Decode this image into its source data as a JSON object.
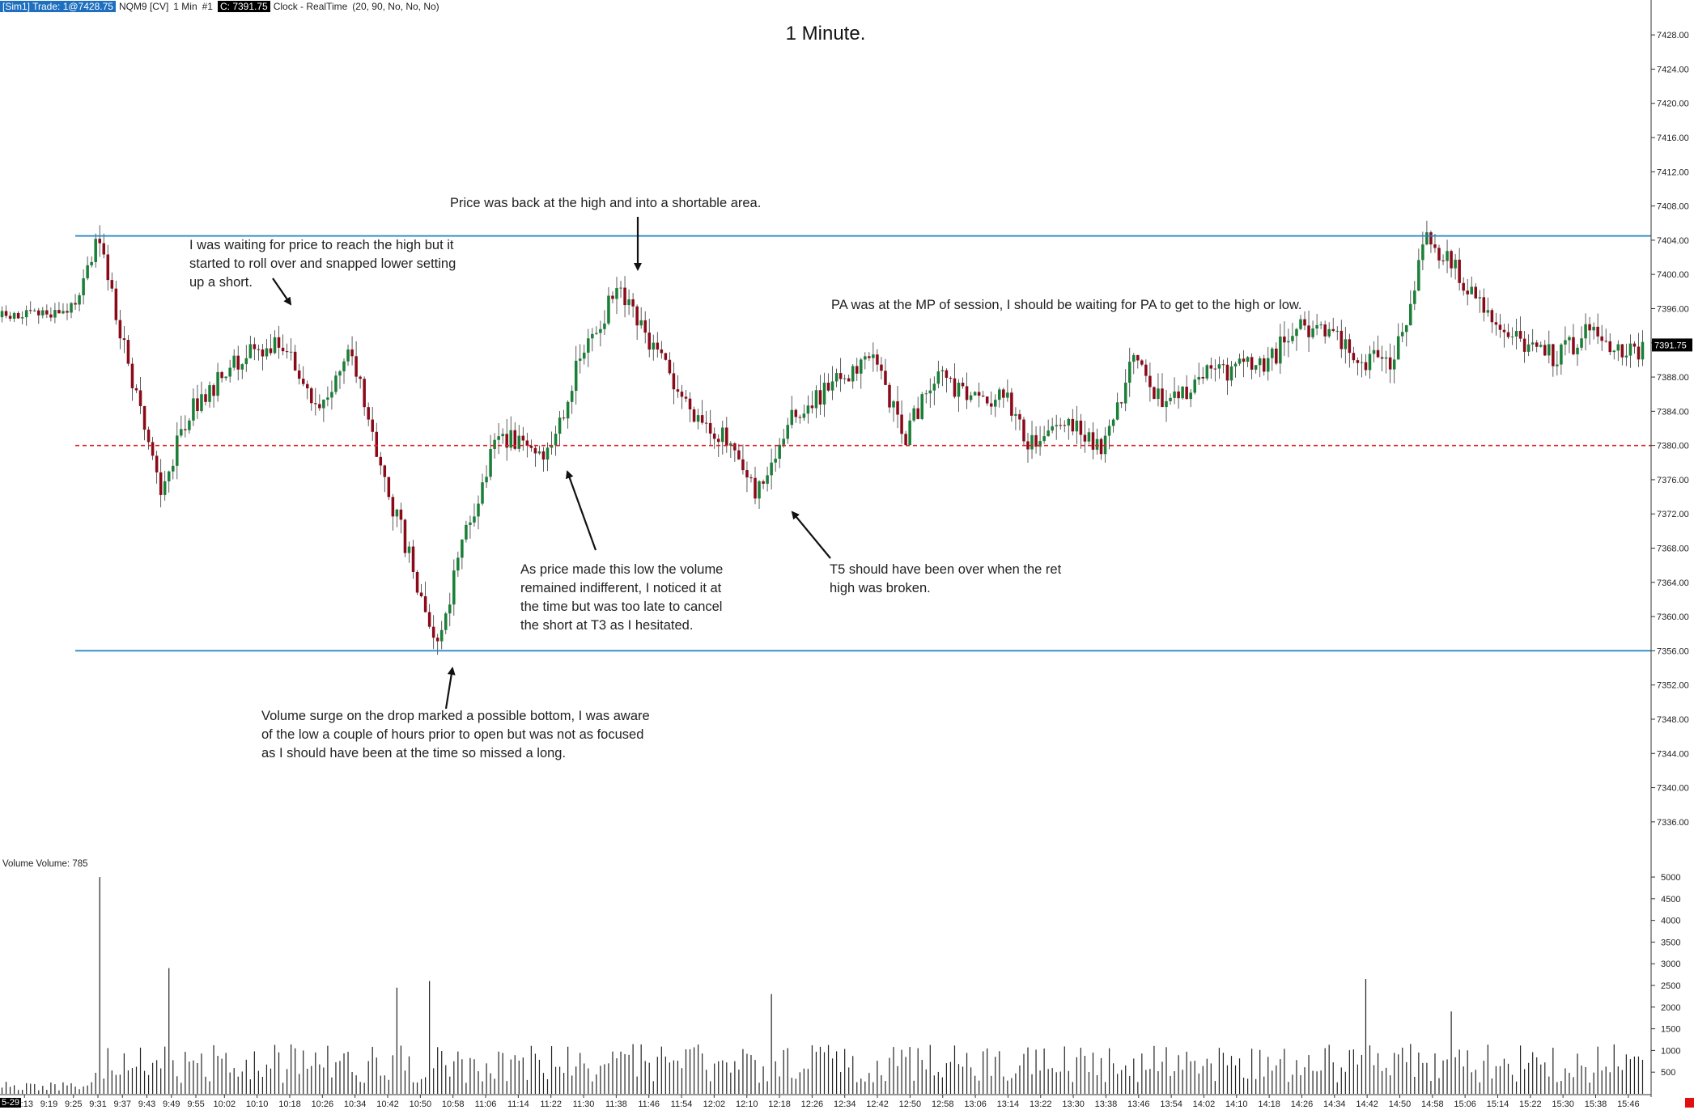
{
  "header": {
    "sim": "[Sim1]  Trade: 1@7428.75",
    "symbol": "NQM9 [CV]",
    "interval": "1 Min",
    "chart_num": "#1",
    "close": "C: 7391.75",
    "clock": "Clock - RealTime",
    "params": "(20, 90, No, No, No)"
  },
  "chart_title": "1 Minute.",
  "volume_label": "Volume  Volume: 785",
  "corner_date": "5-29",
  "notes": {
    "n1": "I was waiting for price to reach the high but it\nstarted to roll over and snapped lower setting\nup a short.",
    "n2": "Price was back at the high and into a shortable area.",
    "n3": "PA was at the MP of session, I should be waiting for PA to get to the high or low.",
    "n4": "As price made this low the volume\nremained indifferent, I noticed it at\nthe time but was too late to cancel\nthe short at T3 as I hesitated.",
    "n5": "T5 should have been over when the ret\nhigh was broken.",
    "n6": "Volume surge on the drop marked a possible bottom, I was aware\nof the low a couple of hours prior to open but was not as focused\nas I should have been at the time so missed a long."
  },
  "colors": {
    "up_candle": "#1a7f37",
    "down_candle": "#8b0a1a",
    "level_line": "#1f84c6",
    "midpoint_line": "#e02020",
    "volume_bar": "#222222",
    "close_tag": "#000000"
  },
  "chart_data": [
    {
      "type": "candlestick",
      "title": "1 Minute.",
      "instrument": "NQM9 [CV]",
      "interval": "1 Min",
      "y_ticks": [
        "7428.00",
        "7424.00",
        "7420.00",
        "7416.00",
        "7412.00",
        "7408.00",
        "7404.00",
        "7400.00",
        "7396.00",
        "7392.00",
        "7388.00",
        "7384.00",
        "7380.00",
        "7376.00",
        "7372.00",
        "7368.00",
        "7364.00",
        "7360.00",
        "7356.00",
        "7352.00",
        "7348.00",
        "7344.00",
        "7340.00",
        "7336.00"
      ],
      "ylim": [
        7334,
        7430
      ],
      "current_close": "7391.75",
      "x_ticks": [
        "9:13",
        "9:19",
        "9:25",
        "9:31",
        "9:37",
        "9:43",
        "9:49",
        "9:55",
        "10:02",
        "10:10",
        "10:18",
        "10:26",
        "10:34",
        "10:42",
        "10:50",
        "10:58",
        "11:06",
        "11:14",
        "11:22",
        "11:30",
        "11:38",
        "11:46",
        "11:54",
        "12:02",
        "12:10",
        "12:18",
        "12:26",
        "12:34",
        "12:42",
        "12:50",
        "12:58",
        "13:06",
        "13:14",
        "13:22",
        "13:30",
        "13:38",
        "13:46",
        "13:54",
        "14:02",
        "14:10",
        "14:18",
        "14:26",
        "14:34",
        "14:42",
        "14:50",
        "14:58",
        "15:06",
        "15:14",
        "15:22",
        "15:30",
        "15:38",
        "15:46"
      ],
      "key_points": [
        {
          "time": "9:13",
          "price": 7395
        },
        {
          "time": "9:25",
          "price": 7396
        },
        {
          "time": "9:32",
          "price": 7404
        },
        {
          "time": "9:40",
          "price": 7387
        },
        {
          "time": "9:47",
          "price": 7374
        },
        {
          "time": "9:53",
          "price": 7383
        },
        {
          "time": "10:05",
          "price": 7390
        },
        {
          "time": "10:18",
          "price": 7392
        },
        {
          "time": "10:25",
          "price": 7384
        },
        {
          "time": "10:34",
          "price": 7391
        },
        {
          "time": "10:42",
          "price": 7376
        },
        {
          "time": "10:50",
          "price": 7364
        },
        {
          "time": "10:55",
          "price": 7357
        },
        {
          "time": "11:02",
          "price": 7370
        },
        {
          "time": "11:10",
          "price": 7381
        },
        {
          "time": "11:22",
          "price": 7379
        },
        {
          "time": "11:30",
          "price": 7390
        },
        {
          "time": "11:39",
          "price": 7398
        },
        {
          "time": "11:47",
          "price": 7392
        },
        {
          "time": "11:56",
          "price": 7385
        },
        {
          "time": "12:05",
          "price": 7381
        },
        {
          "time": "12:13",
          "price": 7374
        },
        {
          "time": "12:22",
          "price": 7383
        },
        {
          "time": "12:34",
          "price": 7388
        },
        {
          "time": "12:42",
          "price": 7390
        },
        {
          "time": "12:50",
          "price": 7381
        },
        {
          "time": "12:58",
          "price": 7389
        },
        {
          "time": "13:06",
          "price": 7385
        },
        {
          "time": "13:14",
          "price": 7386
        },
        {
          "time": "13:22",
          "price": 7379
        },
        {
          "time": "13:30",
          "price": 7383
        },
        {
          "time": "13:38",
          "price": 7380
        },
        {
          "time": "13:46",
          "price": 7390
        },
        {
          "time": "13:54",
          "price": 7384
        },
        {
          "time": "14:02",
          "price": 7388
        },
        {
          "time": "14:10",
          "price": 7389
        },
        {
          "time": "14:18",
          "price": 7389
        },
        {
          "time": "14:26",
          "price": 7394
        },
        {
          "time": "14:34",
          "price": 7394
        },
        {
          "time": "14:42",
          "price": 7390
        },
        {
          "time": "14:50",
          "price": 7390
        },
        {
          "time": "14:58",
          "price": 7404
        },
        {
          "time": "15:02",
          "price": 7402
        },
        {
          "time": "15:06",
          "price": 7400
        },
        {
          "time": "15:14",
          "price": 7395
        },
        {
          "time": "15:22",
          "price": 7392
        },
        {
          "time": "15:30",
          "price": 7390
        },
        {
          "time": "15:38",
          "price": 7394
        },
        {
          "time": "15:46",
          "price": 7391
        }
      ],
      "lines": [
        {
          "kind": "horizontal",
          "price": 7404.5,
          "style": "solid",
          "color": "#1f84c6"
        },
        {
          "kind": "horizontal",
          "price": 7380.0,
          "style": "dashed",
          "color": "#e02020"
        },
        {
          "kind": "horizontal",
          "price": 7356.0,
          "style": "solid",
          "color": "#1f84c6"
        }
      ]
    },
    {
      "type": "bar",
      "title": "Volume  Volume: 785",
      "y_ticks": [
        "5000",
        "4500",
        "4000",
        "3500",
        "3000",
        "2500",
        "2000",
        "1500",
        "1000",
        "500"
      ],
      "ylim": [
        0,
        5300
      ],
      "notable_values": [
        {
          "time": "9:31",
          "value": 5000
        },
        {
          "time": "9:48",
          "value": 2900
        },
        {
          "time": "10:44",
          "value": 2450
        },
        {
          "time": "10:52",
          "value": 2600
        },
        {
          "time": "12:16",
          "value": 2300
        },
        {
          "time": "14:42",
          "value": 2650
        },
        {
          "time": "15:03",
          "value": 1900
        }
      ],
      "last_value": 785
    }
  ]
}
